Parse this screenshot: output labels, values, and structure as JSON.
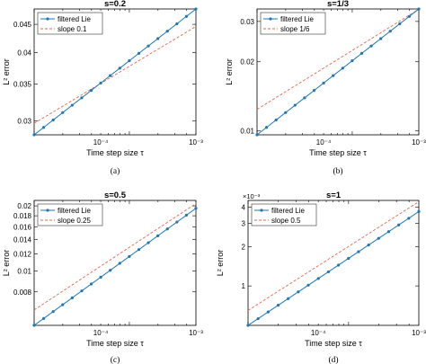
{
  "chart_data": [
    {
      "type": "line",
      "panel": "(a)",
      "title": "s=0.2",
      "xlabel": "Time step size τ",
      "ylabel": "L² error",
      "xscale": "log",
      "yscale": "log",
      "xlim": [
        2e-05,
        0.001
      ],
      "ylim": [
        0.0283,
        0.048
      ],
      "x_ticks": [
        0.0001,
        0.001
      ],
      "x_tick_labels": [
        "10⁻⁴",
        "10⁻³"
      ],
      "y_ticks": [
        0.03,
        0.035,
        0.04,
        0.045
      ],
      "y_tick_labels": [
        "0.03",
        "0.035",
        "0.04",
        "0.045"
      ],
      "y_exponent_label": "",
      "legend_position": "top-left",
      "series": [
        {
          "name": "filtered Lie",
          "style": "solid-marker",
          "x_range": [
            2e-05,
            0.001
          ],
          "y_range": [
            0.0283,
            0.048
          ],
          "points": 18
        },
        {
          "name": "slope 0.1",
          "style": "dashed",
          "x_range": [
            2e-05,
            0.001
          ],
          "y_range": [
            0.0297,
            0.0446
          ]
        }
      ]
    },
    {
      "type": "line",
      "panel": "(b)",
      "title": "s=1/3",
      "xlabel": "Time step size τ",
      "ylabel": "L² error",
      "xscale": "log",
      "yscale": "log",
      "xlim": [
        2e-05,
        0.001
      ],
      "ylim": [
        0.0096,
        0.034
      ],
      "x_ticks": [
        0.0001,
        0.001
      ],
      "x_tick_labels": [
        "10⁻⁴",
        "10⁻³"
      ],
      "y_ticks": [
        0.01,
        0.02,
        0.03
      ],
      "y_tick_labels": [
        "0.01",
        "0.02",
        "0.03"
      ],
      "y_exponent_label": "",
      "legend_position": "top-left",
      "series": [
        {
          "name": "filtered Lie",
          "style": "solid-marker",
          "x_range": [
            2e-05,
            0.001
          ],
          "y_range": [
            0.0096,
            0.034
          ],
          "points": 18
        },
        {
          "name": "slope 1/6",
          "style": "dashed",
          "x_range": [
            2e-05,
            0.001
          ],
          "y_range": [
            0.0124,
            0.0339
          ]
        }
      ]
    },
    {
      "type": "line",
      "panel": "(c)",
      "title": "s=0.5",
      "xlabel": "Time step size τ",
      "ylabel": "L² error",
      "xscale": "log",
      "yscale": "log",
      "xlim": [
        2e-05,
        0.001
      ],
      "ylim": [
        0.0056,
        0.0212
      ],
      "x_ticks": [
        0.0001,
        0.001
      ],
      "x_tick_labels": [
        "10⁻⁴",
        "10⁻³"
      ],
      "y_ticks": [
        0.008,
        0.01,
        0.012,
        0.014,
        0.016,
        0.018,
        0.02
      ],
      "y_tick_labels": [
        "0.008",
        "0.01",
        "0.012",
        "0.014",
        "0.016",
        "0.018",
        "0.02"
      ],
      "y_exponent_label": "",
      "legend_position": "top-left",
      "series": [
        {
          "name": "filtered Lie",
          "style": "solid-marker",
          "x_range": [
            2e-05,
            0.001
          ],
          "y_range": [
            0.0056,
            0.0195
          ],
          "points": 18
        },
        {
          "name": "slope 0.25",
          "style": "dashed",
          "x_range": [
            2e-05,
            0.001
          ],
          "y_range": [
            0.0066,
            0.0205
          ]
        }
      ]
    },
    {
      "type": "line",
      "panel": "(d)",
      "title": "s=1",
      "xlabel": "Time step size τ",
      "ylabel": "L² error",
      "xscale": "log",
      "yscale": "log",
      "xlim": [
        2e-05,
        0.001
      ],
      "ylim": [
        0.0005,
        0.0045
      ],
      "x_ticks": [
        0.0001,
        0.001
      ],
      "x_tick_labels": [
        "10⁻⁴",
        "10⁻³"
      ],
      "y_ticks": [
        0.001,
        0.002,
        0.003,
        0.004
      ],
      "y_tick_labels": [
        "1",
        "2",
        "3",
        "4"
      ],
      "y_exponent_label": "×10⁻³",
      "legend_position": "top-left",
      "series": [
        {
          "name": "filtered Lie",
          "style": "solid-marker",
          "x_range": [
            2e-05,
            0.001
          ],
          "y_range": [
            0.0005,
            0.0037
          ],
          "points": 18
        },
        {
          "name": "slope 0.5",
          "style": "dashed",
          "x_range": [
            2e-05,
            0.001
          ],
          "y_range": [
            0.00065,
            0.0044
          ]
        }
      ]
    }
  ],
  "colors": {
    "series_line": "#1f77b4",
    "slope_line": "#e8654a",
    "axis": "#000000"
  }
}
